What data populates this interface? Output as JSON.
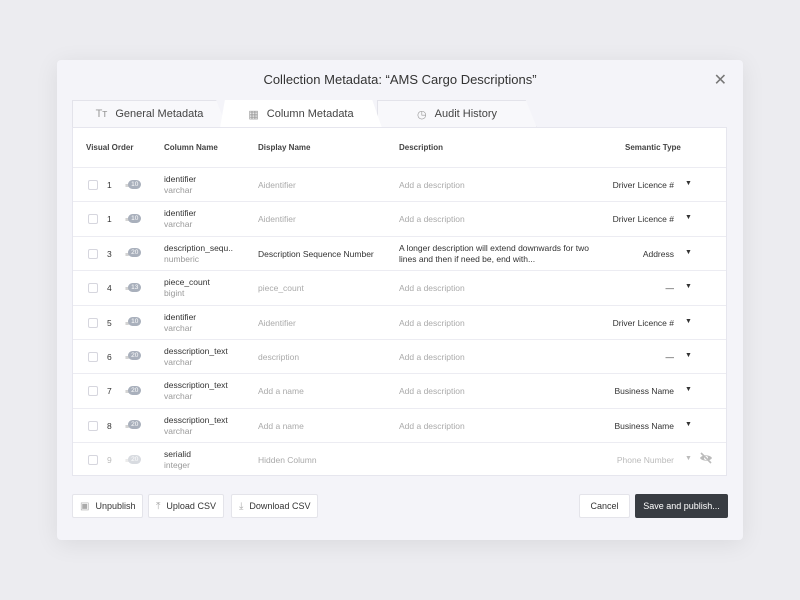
{
  "title": "Collection Metadata: “AMS Cargo Descriptions”",
  "tabs": [
    {
      "label": "General Metadata",
      "icon": "text-type-icon"
    },
    {
      "label": "Column Metadata",
      "icon": "table-icon",
      "active": true
    },
    {
      "label": "Audit History",
      "icon": "history-icon"
    }
  ],
  "headers": {
    "order": "Visual Order",
    "column": "Column Name",
    "display": "Display Name",
    "description": "Description",
    "semantic": "Semantic Type"
  },
  "rows": [
    {
      "order": "1",
      "count": "10",
      "name": "identifier",
      "type": "varchar",
      "display": "Aidentifier",
      "description": "Add a description",
      "semantic": "Driver Licence #"
    },
    {
      "order": "1",
      "count": "10",
      "name": "identifier",
      "type": "varchar",
      "display": "Aidentifier",
      "description": "Add a description",
      "semantic": "Driver Licence #"
    },
    {
      "order": "3",
      "count": "20",
      "name": "description_sequ..",
      "type": "numberic",
      "display": "Description Sequence Number",
      "display_set": true,
      "description": "A longer description will extend downwards for two lines and then if need be, end with...",
      "description_set": true,
      "semantic": "Address"
    },
    {
      "order": "4",
      "count": "13",
      "name": "piece_count",
      "type": "bigint",
      "display": "piece_count",
      "description": "Add a description",
      "semantic": "—"
    },
    {
      "order": "5",
      "count": "10",
      "name": "identifier",
      "type": "varchar",
      "display": "Aidentifier",
      "description": "Add a description",
      "semantic": "Driver Licence #"
    },
    {
      "order": "6",
      "count": "20",
      "name": "desscription_text",
      "type": "varchar",
      "display": "description",
      "description": "Add a description",
      "semantic": "—"
    },
    {
      "order": "7",
      "count": "20",
      "name": "desscription_text",
      "type": "varchar",
      "display": "Add a name",
      "description": "Add a description",
      "semantic": "Business Name"
    },
    {
      "order": "8",
      "count": "20",
      "name": "desscription_text",
      "type": "varchar",
      "display": "Add a name",
      "description": "Add a description",
      "semantic": "Business Name"
    },
    {
      "order": "9",
      "count": "20",
      "name": "serialid",
      "type": "integer",
      "display": "Hidden Column",
      "description": "",
      "semantic": "Phone Number",
      "hidden": true
    }
  ],
  "footer": {
    "unpublish": "Unpublish",
    "upload": "Upload CSV",
    "download": "Download CSV",
    "cancel": "Cancel",
    "save": "Save and publish..."
  },
  "colors": {
    "primary_button": "#383c42",
    "badge": "#a9b0bc"
  }
}
